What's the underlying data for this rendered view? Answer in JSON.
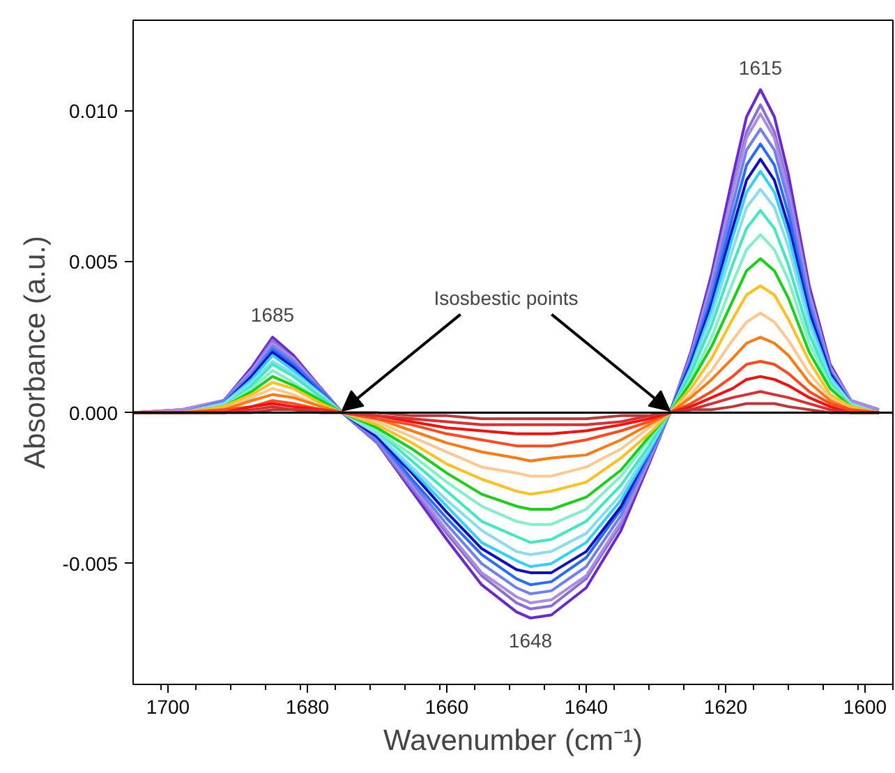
{
  "chart_data": {
    "type": "line",
    "xlabel": "Wavenumber (cm⁻¹)",
    "ylabel": "Absorbance (a.u.)",
    "xlim": [
      1705,
      1596
    ],
    "ylim": [
      -0.009,
      0.013
    ],
    "xticks": [
      1700,
      1680,
      1660,
      1640,
      1620,
      1600
    ],
    "yticks": [
      {
        "value": -0.005,
        "label": "-0.005"
      },
      {
        "value": 0,
        "label": "0.000"
      },
      {
        "value": 0.005,
        "label": "0.005"
      },
      {
        "value": 0.01,
        "label": "0.010"
      }
    ],
    "grid": false,
    "line_style": "solid",
    "marker": "none",
    "x": [
      1705,
      1698,
      1692,
      1688,
      1685,
      1682,
      1678,
      1675,
      1670,
      1665,
      1660,
      1655,
      1650,
      1648,
      1645,
      1640,
      1635,
      1631,
      1628,
      1625,
      1622,
      1619,
      1617,
      1615,
      1613,
      1611,
      1608,
      1605,
      1602,
      1598
    ],
    "ref_lines": [
      {
        "axis": "y",
        "value": 0,
        "label": null,
        "color": "#000000",
        "line_style": "solid"
      }
    ],
    "annotations": [
      "1685",
      "1648",
      "1615",
      {
        "text": "Isosbestic points",
        "x": 1675,
        "y": 0
      }
    ],
    "series": [
      {
        "color": "#6a28d0",
        "values": [
          0,
          0.0001,
          0.0004,
          0.0015,
          0.0025,
          0.0019,
          0.0008,
          0,
          -0.001,
          -0.0026,
          -0.0042,
          -0.0057,
          -0.0066,
          -0.0068,
          -0.0067,
          -0.0058,
          -0.0039,
          -0.0017,
          0,
          0.002,
          0.0046,
          0.0078,
          0.0098,
          0.0107,
          0.0098,
          0.0079,
          0.0042,
          0.0016,
          0.0004,
          0.0001
        ]
      },
      {
        "color": "#8a6ed8",
        "values": [
          0,
          0.0001,
          0.0004,
          0.0014,
          0.0024,
          0.0018,
          0.0008,
          0,
          -0.001,
          -0.0025,
          -0.004,
          -0.0054,
          -0.0063,
          -0.0065,
          -0.0064,
          -0.0055,
          -0.0037,
          -0.0016,
          0,
          0.0019,
          0.0044,
          0.0074,
          0.0093,
          0.0102,
          0.0093,
          0.0075,
          0.004,
          0.0015,
          0.0004,
          0.0001
        ]
      },
      {
        "color": "#a98ce0",
        "values": [
          0,
          0.0001,
          0.0004,
          0.0014,
          0.0023,
          0.0018,
          0.0007,
          0,
          -0.0009,
          -0.0024,
          -0.0039,
          -0.0053,
          -0.0061,
          -0.0063,
          -0.0062,
          -0.0054,
          -0.0036,
          -0.0016,
          0,
          0.0019,
          0.0043,
          0.0073,
          0.0091,
          0.0099,
          0.0091,
          0.0073,
          0.0039,
          0.0015,
          0.0004,
          0.0001
        ]
      },
      {
        "color": "#6f7ff0",
        "values": [
          0,
          0,
          0.0004,
          0.0013,
          0.0022,
          0.0017,
          0.0007,
          0,
          -0.0009,
          -0.0023,
          -0.0037,
          -0.005,
          -0.0058,
          -0.006,
          -0.0059,
          -0.0051,
          -0.0034,
          -0.0015,
          0,
          0.0018,
          0.0041,
          0.0069,
          0.0087,
          0.0094,
          0.0087,
          0.007,
          0.0037,
          0.0014,
          0.0003,
          0
        ]
      },
      {
        "color": "#2a6cf5",
        "values": [
          0,
          0,
          0.0003,
          0.0012,
          0.0021,
          0.0016,
          0.0007,
          0,
          -0.0008,
          -0.0022,
          -0.0035,
          -0.0047,
          -0.0055,
          -0.0057,
          -0.0056,
          -0.0048,
          -0.0032,
          -0.0014,
          0,
          0.0017,
          0.0038,
          0.0065,
          0.0082,
          0.0089,
          0.0082,
          0.0066,
          0.0035,
          0.0013,
          0.0003,
          0
        ]
      },
      {
        "color": "#1010c0",
        "values": [
          0,
          0,
          0.0003,
          0.0012,
          0.002,
          0.0015,
          0.0006,
          0,
          -0.0008,
          -0.002,
          -0.0033,
          -0.0045,
          -0.0052,
          -0.0053,
          -0.0053,
          -0.0046,
          -0.0031,
          -0.0013,
          0,
          0.0016,
          0.0036,
          0.0061,
          0.0077,
          0.0084,
          0.0077,
          0.0062,
          0.0033,
          0.0013,
          0.0003,
          0
        ]
      },
      {
        "color": "#30d0f8",
        "values": [
          0,
          0,
          0.0003,
          0.0011,
          0.0019,
          0.0014,
          0.0006,
          0,
          -0.0007,
          -0.0019,
          -0.0031,
          -0.0043,
          -0.0049,
          -0.0051,
          -0.005,
          -0.0043,
          -0.0029,
          -0.0013,
          0,
          0.0015,
          0.0034,
          0.0058,
          0.0073,
          0.008,
          0.0073,
          0.0059,
          0.0031,
          0.0012,
          0.0003,
          0
        ]
      },
      {
        "color": "#88dcf0",
        "values": [
          0,
          0,
          0.0003,
          0.001,
          0.0017,
          0.0013,
          0.0006,
          0,
          -0.0007,
          -0.0018,
          -0.0029,
          -0.0039,
          -0.0046,
          -0.0047,
          -0.0046,
          -0.004,
          -0.0027,
          -0.0012,
          0,
          0.0014,
          0.0032,
          0.0054,
          0.0068,
          0.0074,
          0.0068,
          0.0055,
          0.0029,
          0.0011,
          0.0003,
          0
        ]
      },
      {
        "color": "#40e8c0",
        "values": [
          0,
          0,
          0.0002,
          0.0009,
          0.0016,
          0.0012,
          0.0005,
          0,
          -0.0006,
          -0.0016,
          -0.0026,
          -0.0036,
          -0.0041,
          -0.0043,
          -0.0042,
          -0.0036,
          -0.0024,
          -0.0011,
          0,
          0.0013,
          0.0029,
          0.0049,
          0.0061,
          0.0067,
          0.0061,
          0.0049,
          0.0026,
          0.001,
          0.0002,
          0
        ]
      },
      {
        "color": "#80f0c8",
        "values": [
          0,
          0,
          0.0002,
          0.0008,
          0.0014,
          0.001,
          0.0004,
          0,
          -0.0006,
          -0.0014,
          -0.0023,
          -0.0031,
          -0.0036,
          -0.0037,
          -0.0037,
          -0.0032,
          -0.0021,
          -0.0009,
          0,
          0.0011,
          0.0025,
          0.0043,
          0.0054,
          0.0059,
          0.0054,
          0.0044,
          0.0023,
          0.0009,
          0.0002,
          0
        ]
      },
      {
        "color": "#18d018",
        "values": [
          0,
          0,
          0.0002,
          0.0007,
          0.0012,
          0.0009,
          0.0004,
          0,
          -0.0005,
          -0.0012,
          -0.002,
          -0.0027,
          -0.0031,
          -0.0032,
          -0.0032,
          -0.0028,
          -0.0019,
          -0.0008,
          0,
          0.001,
          0.0022,
          0.0037,
          0.0047,
          0.0051,
          0.0047,
          0.0038,
          0.002,
          0.0008,
          0.0002,
          0
        ]
      },
      {
        "color": "#ffc020",
        "values": [
          0,
          0,
          0.0002,
          0.0006,
          0.001,
          0.0008,
          0.0003,
          0,
          -0.0004,
          -0.001,
          -0.0017,
          -0.0022,
          -0.0026,
          -0.0027,
          -0.0026,
          -0.0023,
          -0.0015,
          -0.0007,
          0,
          0.0008,
          0.0018,
          0.0031,
          0.0039,
          0.0042,
          0.0039,
          0.0031,
          0.0017,
          0.0006,
          0.0002,
          0
        ]
      },
      {
        "color": "#ffc890",
        "values": [
          0,
          0,
          0.0001,
          0.0005,
          0.0008,
          0.0006,
          0.0002,
          0,
          -0.0003,
          -0.0008,
          -0.0013,
          -0.0018,
          -0.002,
          -0.0021,
          -0.0021,
          -0.0018,
          -0.0012,
          -0.0005,
          0,
          0.0006,
          0.0014,
          0.0024,
          0.003,
          0.0033,
          0.003,
          0.0024,
          0.0013,
          0.0005,
          0.0001,
          0
        ]
      },
      {
        "color": "#ff7a10",
        "values": [
          0,
          0,
          0.0001,
          0.0004,
          0.0006,
          0.0005,
          0.0002,
          0,
          -0.0002,
          -0.0006,
          -0.001,
          -0.0013,
          -0.0015,
          -0.0016,
          -0.0015,
          -0.0014,
          -0.0009,
          -0.0004,
          0,
          0.0005,
          0.0011,
          0.0018,
          0.0023,
          0.0025,
          0.0023,
          0.0019,
          0.001,
          0.0004,
          0.0001,
          0
        ]
      },
      {
        "color": "#ff4a20",
        "values": [
          0,
          0,
          0.0001,
          0.0002,
          0.0004,
          0.0003,
          0.0001,
          0,
          -0.0002,
          -0.0004,
          -0.0007,
          -0.0009,
          -0.0011,
          -0.0011,
          -0.0011,
          -0.0009,
          -0.0006,
          -0.0003,
          0,
          0.0003,
          0.0007,
          0.0012,
          0.0016,
          0.0017,
          0.0016,
          0.0013,
          0.0007,
          0.0003,
          0.0001,
          0
        ]
      },
      {
        "color": "#f01010",
        "values": [
          0,
          0,
          0,
          0.0002,
          0.0003,
          0.0002,
          0.0001,
          0,
          -0.0001,
          -0.0003,
          -0.0005,
          -0.0006,
          -0.0007,
          -0.0007,
          -0.0007,
          -0.0006,
          -0.0004,
          -0.0002,
          0,
          0.0002,
          0.0005,
          0.0008,
          0.0011,
          0.0012,
          0.0011,
          0.0009,
          0.0005,
          0.0002,
          0,
          0
        ]
      },
      {
        "color": "#d83030",
        "values": [
          0,
          0,
          0,
          0.0001,
          0.0002,
          0.0001,
          0.0001,
          0,
          -0.0001,
          -0.0002,
          -0.0003,
          -0.0004,
          -0.0004,
          -0.0004,
          -0.0004,
          -0.0004,
          -0.0003,
          -0.0001,
          0,
          0.0001,
          0.0003,
          0.0005,
          0.0006,
          0.0007,
          0.0006,
          0.0005,
          0.0003,
          0.0001,
          0,
          0
        ]
      },
      {
        "color": "#b83838",
        "values": [
          0,
          0,
          0,
          0,
          0.0001,
          0.0001,
          0,
          0,
          0,
          -0.0001,
          -0.0001,
          -0.0002,
          -0.0002,
          -0.0002,
          -0.0002,
          -0.0002,
          -0.0001,
          -0.0001,
          0,
          0.0001,
          0.0001,
          0.0002,
          0.0003,
          0.0003,
          0.0003,
          0.0002,
          0.0001,
          0,
          0,
          0
        ]
      }
    ]
  }
}
